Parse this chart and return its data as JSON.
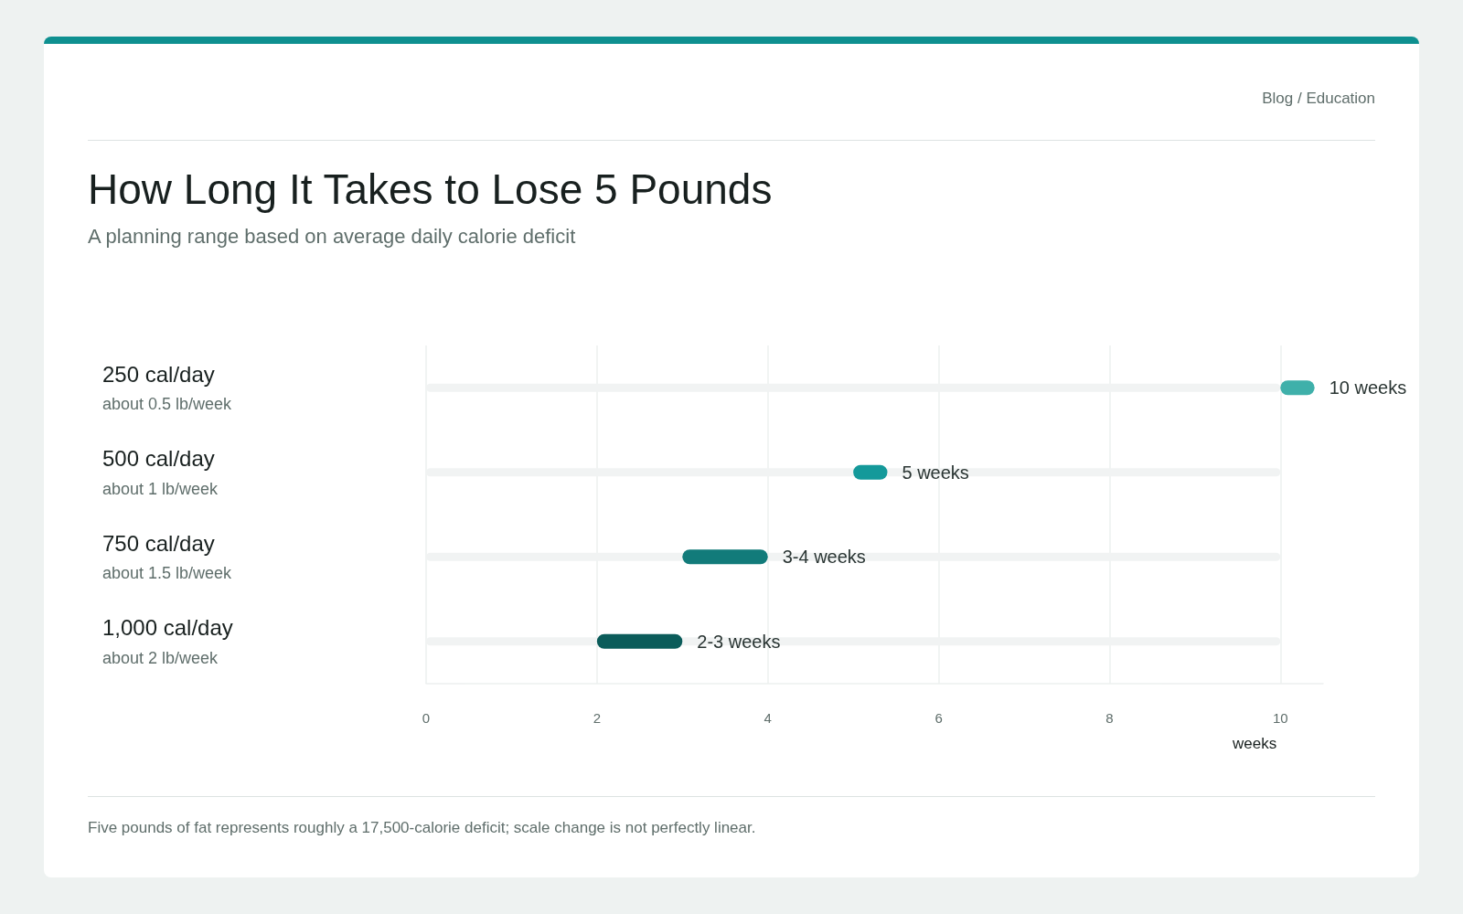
{
  "chart_data": {
    "type": "bar",
    "orientation": "horizontal",
    "title": "How Long It Takes to Lose 5 Pounds",
    "subtitle": "A planning range based on average daily calorie deficit",
    "categories": [
      "250 cal/day\nabout 0.5 lb/week",
      "500 cal/day\nabout 1 lb/week",
      "750 cal/day\nabout 1.5 lb/week",
      "1,000 cal/day\nabout 2 lb/week"
    ],
    "series": [
      {
        "color": "#f1f3f3",
        "values": [
          10,
          10,
          10,
          10
        ]
      },
      {
        "colors": [
          "#3fb0aa",
          "#14999a",
          "#127b7a",
          "#0b5c5a"
        ],
        "base": [
          10,
          5,
          3,
          2
        ],
        "values": [
          0.4,
          0.4,
          1,
          1
        ],
        "value_labels": [
          "10 weeks",
          "5 weeks",
          "3-4 weeks",
          "2-3 weeks"
        ]
      }
    ],
    "xlabel": "weeks",
    "xlim": [
      0,
      10.5
    ],
    "xticks": [
      0,
      2,
      4,
      6,
      8,
      10
    ],
    "grid": "x",
    "annotations": [
      "Blog / Education",
      "Five pounds of fat represents roughly a 17,500-calorie deficit; scale change is not perfectly linear."
    ]
  }
}
